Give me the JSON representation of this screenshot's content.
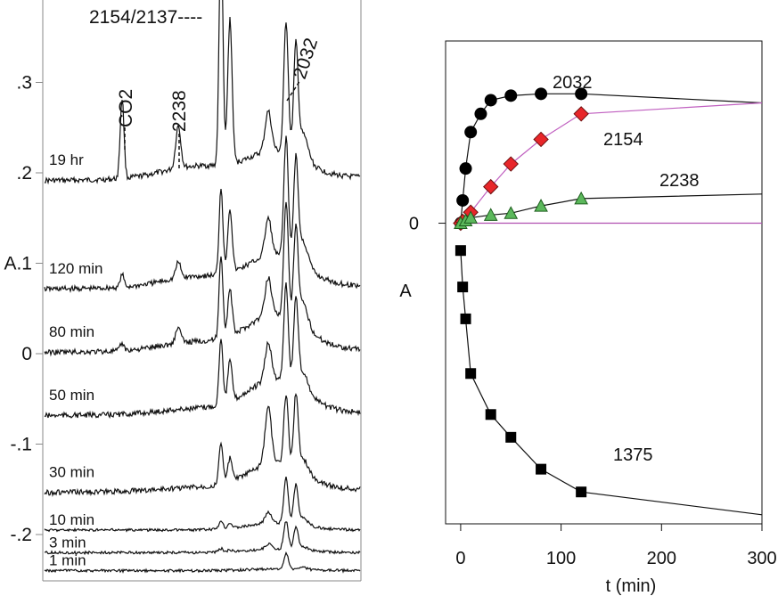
{
  "chart_data": [
    {
      "type": "line",
      "panel": "left",
      "description_of_content": "stacked spectra",
      "y_ticks": [
        ".3",
        ".2",
        "A.1",
        "0",
        "-.1",
        "-.2"
      ],
      "y_tick_values": [
        0.3,
        0.2,
        0.1,
        0,
        -0.1,
        -0.2
      ],
      "ylim": [
        -0.25,
        0.35
      ],
      "series": [
        {
          "name": "19 hr",
          "baseline": 0.195
        },
        {
          "name": "120 min",
          "baseline": 0.075
        },
        {
          "name": "80 min",
          "baseline": 0.005
        },
        {
          "name": "50 min",
          "baseline": -0.065
        },
        {
          "name": "30 min",
          "baseline": -0.15
        },
        {
          "name": "10 min",
          "baseline": -0.195
        },
        {
          "name": "3 min",
          "baseline": -0.22
        },
        {
          "name": "1 min",
          "baseline": -0.24
        }
      ],
      "annotations": [
        "2154/2137----",
        "CO2",
        "2238",
        "2032"
      ]
    },
    {
      "type": "scatter",
      "panel": "right",
      "xlabel": "t (min)",
      "ylabel": "A",
      "x_ticks": [
        0,
        100,
        200,
        300
      ],
      "xlim": [
        -15,
        300
      ],
      "y_tick_labels": [
        {
          "value": 0,
          "label": "0"
        }
      ],
      "ylim": [
        -0.33,
        0.2
      ],
      "series": [
        {
          "name": "2032",
          "marker": "circle",
          "color": "#000000",
          "x": [
            0,
            2,
            5,
            10,
            20,
            30,
            50,
            80,
            120
          ],
          "y": [
            0.0,
            0.025,
            0.06,
            0.1,
            0.12,
            0.135,
            0.14,
            0.142,
            0.142
          ],
          "fit_end": 0.132
        },
        {
          "name": "2154",
          "marker": "diamond",
          "color": "#e8262a",
          "line_color": "#c060c0",
          "x": [
            0,
            2,
            10,
            30,
            50,
            80,
            120
          ],
          "y": [
            0.0,
            0.002,
            0.012,
            0.04,
            0.065,
            0.092,
            0.12
          ],
          "fit_end": 0.132
        },
        {
          "name": "2238",
          "marker": "triangle",
          "color": "#5cb85c",
          "x": [
            0,
            5,
            10,
            30,
            50,
            80,
            120
          ],
          "y": [
            0.0,
            0.003,
            0.006,
            0.009,
            0.011,
            0.019,
            0.027
          ],
          "fit_end": 0.032
        },
        {
          "name": "1375",
          "marker": "square",
          "color": "#000000",
          "x": [
            0,
            2,
            5,
            10,
            30,
            50,
            80,
            120
          ],
          "y": [
            -0.03,
            -0.07,
            -0.105,
            -0.165,
            -0.21,
            -0.235,
            -0.27,
            -0.295
          ],
          "fit_end": -0.32
        }
      ]
    }
  ]
}
